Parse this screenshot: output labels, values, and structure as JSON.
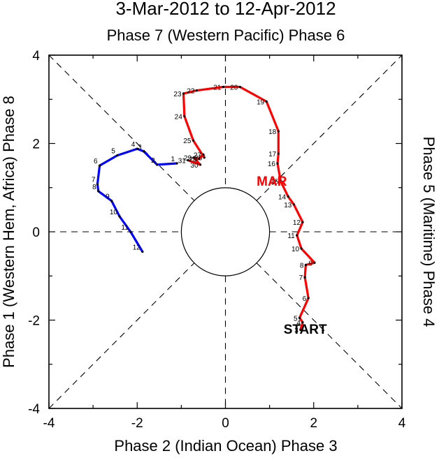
{
  "chart_data": {
    "type": "line",
    "title": "3-Mar-2012 to 12-Apr-2012",
    "subtitle": "Phase 7 (Western Pacific) Phase 6",
    "xlabel": "Phase 2 (Indian Ocean) Phase 3",
    "ylabel_left": "Phase 1 (Western Hem, Africa) Phase 8",
    "ylabel_right": "Phase 5 (Maritime) Phase 4",
    "xlim": [
      -4,
      4
    ],
    "ylim": [
      -4,
      4
    ],
    "x_ticks": [
      "-4",
      "-2",
      "0",
      "2",
      "4"
    ],
    "y_ticks": [
      "-4",
      "-2",
      "0",
      "2",
      "4"
    ],
    "circle_radius": 1,
    "start_label": "START",
    "start_point": [
      1.65,
      -2.2
    ],
    "series": [
      {
        "name": "March 2012",
        "month_label": "MAR",
        "color": "#ff0000",
        "label_at": [
          1.05,
          2.15
        ],
        "points": [
          {
            "day": "3",
            "x": 1.7,
            "y": -2.22
          },
          {
            "day": "4",
            "x": 1.75,
            "y": -2.05
          },
          {
            "day": "5",
            "x": 1.68,
            "y": -1.95
          },
          {
            "day": "6",
            "x": 1.88,
            "y": -1.5
          },
          {
            "day": "7",
            "x": 1.8,
            "y": -1.03
          },
          {
            "day": "8",
            "x": 1.82,
            "y": -0.75
          },
          {
            "day": "9",
            "x": 2.02,
            "y": -0.7
          },
          {
            "day": "10",
            "x": 1.72,
            "y": -0.38
          },
          {
            "day": "11",
            "x": 1.62,
            "y": -0.08
          },
          {
            "day": "12",
            "x": 1.75,
            "y": 0.22
          },
          {
            "day": "13",
            "x": 1.55,
            "y": 0.62
          },
          {
            "day": "14",
            "x": 1.42,
            "y": 0.8
          },
          {
            "day": "15",
            "x": 1.25,
            "y": 1.15
          },
          {
            "day": "16",
            "x": 1.18,
            "y": 1.55
          },
          {
            "day": "17",
            "x": 1.2,
            "y": 1.77
          },
          {
            "day": "18",
            "x": 1.2,
            "y": 2.28
          },
          {
            "day": "19",
            "x": 0.93,
            "y": 2.95
          },
          {
            "day": "20",
            "x": 0.33,
            "y": 3.28
          },
          {
            "day": "21",
            "x": -0.05,
            "y": 3.28
          },
          {
            "day": "22",
            "x": -0.65,
            "y": 3.2
          },
          {
            "day": "23",
            "x": -0.95,
            "y": 3.13
          },
          {
            "day": "24",
            "x": -0.93,
            "y": 2.62
          },
          {
            "day": "25",
            "x": -0.73,
            "y": 2.07
          },
          {
            "day": "26",
            "x": -0.48,
            "y": 1.68
          },
          {
            "day": "27",
            "x": -0.5,
            "y": 1.75
          },
          {
            "day": "28",
            "x": -0.6,
            "y": 1.65
          },
          {
            "day": "29",
            "x": -0.72,
            "y": 1.68
          },
          {
            "day": "30",
            "x": -0.57,
            "y": 1.52
          },
          {
            "day": "31",
            "x": -0.85,
            "y": 1.62
          }
        ]
      },
      {
        "name": "April 2012",
        "color": "#0000ff",
        "points": [
          {
            "day": "1",
            "x": -1.1,
            "y": 1.55
          },
          {
            "day": "2",
            "x": -1.55,
            "y": 1.52
          },
          {
            "day": "3",
            "x": -1.85,
            "y": 1.82
          },
          {
            "day": "4",
            "x": -2.0,
            "y": 1.88
          },
          {
            "day": "5",
            "x": -2.45,
            "y": 1.73
          },
          {
            "day": "6",
            "x": -2.85,
            "y": 1.5
          },
          {
            "day": "7",
            "x": -2.9,
            "y": 1.08
          },
          {
            "day": "8",
            "x": -2.88,
            "y": 0.92
          },
          {
            "day": "9",
            "x": -2.58,
            "y": 0.7
          },
          {
            "day": "10",
            "x": -2.4,
            "y": 0.35
          },
          {
            "day": "11",
            "x": -2.15,
            "y": 0.0
          },
          {
            "day": "12",
            "x": -1.88,
            "y": -0.45
          }
        ]
      }
    ]
  }
}
